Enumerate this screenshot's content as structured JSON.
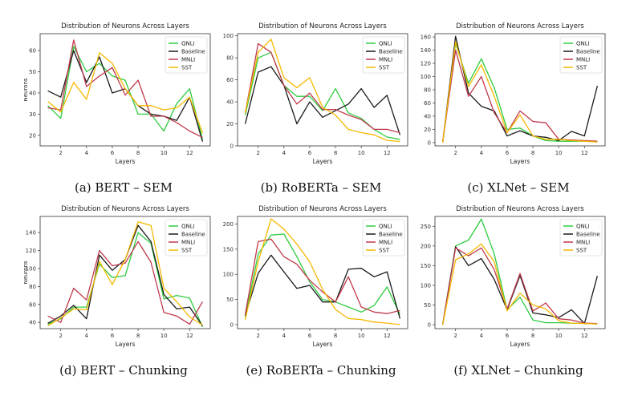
{
  "colors": {
    "QNLI": "#2ecc40",
    "Baseline": "#1a1a1a",
    "MNLI": "#c0394b",
    "SST": "#f5b800"
  },
  "panels": [
    {
      "caption": "(a) BERT – SEM"
    },
    {
      "caption": "(b) RoBERTa – SEM"
    },
    {
      "caption": "(c) XLNet – SEM"
    },
    {
      "caption": "(d) BERT – Chunking"
    },
    {
      "caption": "(e) RoBERTa – Chunking"
    },
    {
      "caption": "(f) XLNet – Chunking"
    }
  ],
  "chart_data": [
    {
      "type": "line",
      "title": "Distribution of Neurons Across Layers",
      "xlabel": "Layers",
      "ylabel": "Neurons",
      "x": [
        1,
        2,
        3,
        4,
        5,
        6,
        7,
        8,
        9,
        10,
        11,
        12,
        13
      ],
      "xticks": [
        2,
        4,
        6,
        8,
        10,
        12
      ],
      "yticks": [
        20,
        30,
        40,
        50,
        60
      ],
      "xlim": [
        0.4,
        13.6
      ],
      "ylim": [
        15,
        68
      ],
      "legend": "top-right",
      "series": [
        {
          "name": "QNLI",
          "values": [
            34,
            28,
            62,
            50,
            54,
            48,
            46,
            30,
            30,
            22,
            35,
            42,
            18
          ]
        },
        {
          "name": "Baseline",
          "values": [
            41,
            38,
            60,
            45,
            57,
            40,
            42,
            34,
            30,
            29,
            27,
            38,
            17
          ]
        },
        {
          "name": "MNLI",
          "values": [
            33,
            32,
            65,
            43,
            48,
            52,
            39,
            46,
            29,
            29,
            26,
            22,
            19
          ]
        },
        {
          "name": "SST",
          "values": [
            36,
            31,
            45,
            37,
            59,
            54,
            42,
            34,
            34,
            32,
            33,
            38,
            21
          ]
        }
      ]
    },
    {
      "type": "line",
      "title": "Distribution of Neurons Across Layers",
      "xlabel": "Layers",
      "ylabel": "",
      "x": [
        1,
        2,
        3,
        4,
        5,
        6,
        7,
        8,
        9,
        10,
        11,
        12,
        13
      ],
      "xticks": [
        2,
        4,
        6,
        8,
        10,
        12
      ],
      "yticks": [
        0,
        20,
        40,
        60,
        80,
        100
      ],
      "xlim": [
        0.4,
        13.6
      ],
      "ylim": [
        0,
        102
      ],
      "legend": "top-right",
      "series": [
        {
          "name": "QNLI",
          "values": [
            28,
            80,
            85,
            55,
            45,
            45,
            32,
            52,
            30,
            25,
            15,
            8,
            6
          ]
        },
        {
          "name": "Baseline",
          "values": [
            20,
            67,
            72,
            55,
            20,
            40,
            26,
            32,
            38,
            52,
            35,
            46,
            10
          ]
        },
        {
          "name": "MNLI",
          "values": [
            30,
            93,
            85,
            55,
            38,
            48,
            33,
            33,
            28,
            24,
            15,
            15,
            12
          ]
        },
        {
          "name": "SST",
          "values": [
            30,
            85,
            97,
            62,
            53,
            62,
            35,
            28,
            15,
            12,
            10,
            5,
            4
          ]
        }
      ]
    },
    {
      "type": "line",
      "title": "Distribution of Neurons Across Layers",
      "xlabel": "Layers",
      "ylabel": "",
      "x": [
        1,
        2,
        3,
        4,
        5,
        6,
        7,
        8,
        9,
        10,
        11,
        12,
        13
      ],
      "xticks": [
        2,
        4,
        6,
        8,
        10,
        12
      ],
      "yticks": [
        0,
        20,
        40,
        60,
        80,
        100,
        120,
        140,
        160
      ],
      "xlim": [
        0.4,
        13.6
      ],
      "ylim": [
        -5,
        165
      ],
      "legend": "top-right",
      "series": [
        {
          "name": "QNLI",
          "values": [
            0,
            150,
            90,
            127,
            83,
            20,
            22,
            10,
            3,
            2,
            2,
            2,
            1
          ]
        },
        {
          "name": "Baseline",
          "values": [
            0,
            161,
            75,
            55,
            48,
            10,
            18,
            10,
            8,
            3,
            17,
            10,
            86
          ]
        },
        {
          "name": "MNLI",
          "values": [
            0,
            140,
            70,
            100,
            45,
            15,
            48,
            32,
            30,
            5,
            4,
            3,
            2
          ]
        },
        {
          "name": "SST",
          "values": [
            0,
            153,
            85,
            118,
            70,
            15,
            42,
            10,
            5,
            5,
            3,
            2,
            1
          ]
        }
      ]
    },
    {
      "type": "line",
      "title": "Distribution of Neurons Across Layers",
      "xlabel": "Layers",
      "ylabel": "Neurons",
      "x": [
        1,
        2,
        3,
        4,
        5,
        6,
        7,
        8,
        9,
        10,
        11,
        12,
        13
      ],
      "xticks": [
        2,
        4,
        6,
        8,
        10,
        12
      ],
      "yticks": [
        40,
        60,
        80,
        100,
        120,
        140
      ],
      "xlim": [
        0.4,
        13.6
      ],
      "ylim": [
        33,
        158
      ],
      "legend": "top-right",
      "series": [
        {
          "name": "QNLI",
          "values": [
            38,
            44,
            57,
            57,
            105,
            90,
            92,
            140,
            128,
            66,
            70,
            67,
            35
          ]
        },
        {
          "name": "Baseline",
          "values": [
            39,
            47,
            59,
            44,
            115,
            98,
            110,
            148,
            130,
            71,
            55,
            57,
            36
          ]
        },
        {
          "name": "MNLI",
          "values": [
            47,
            40,
            78,
            65,
            120,
            103,
            106,
            130,
            107,
            51,
            47,
            38,
            63
          ]
        },
        {
          "name": "SST",
          "values": [
            36,
            45,
            55,
            54,
            108,
            82,
            110,
            152,
            148,
            78,
            63,
            46,
            37
          ]
        }
      ]
    },
    {
      "type": "line",
      "title": "Distribution of Neurons Across Layers",
      "xlabel": "Layers",
      "ylabel": "",
      "x": [
        1,
        2,
        3,
        4,
        5,
        6,
        7,
        8,
        9,
        10,
        11,
        12,
        13
      ],
      "xticks": [
        2,
        4,
        6,
        8,
        10,
        12
      ],
      "yticks": [
        0,
        50,
        100,
        150,
        200
      ],
      "xlim": [
        0.4,
        13.6
      ],
      "ylim": [
        -8,
        215
      ],
      "legend": "top-right",
      "series": [
        {
          "name": "QNLI",
          "values": [
            15,
            140,
            178,
            180,
            135,
            85,
            50,
            45,
            35,
            25,
            38,
            75,
            20
          ]
        },
        {
          "name": "Baseline",
          "values": [
            18,
            102,
            138,
            105,
            72,
            78,
            45,
            45,
            110,
            112,
            95,
            105,
            12
          ]
        },
        {
          "name": "MNLI",
          "values": [
            20,
            165,
            170,
            135,
            120,
            88,
            65,
            45,
            95,
            35,
            25,
            22,
            28
          ]
        },
        {
          "name": "SST",
          "values": [
            10,
            125,
            210,
            190,
            160,
            125,
            70,
            30,
            12,
            10,
            5,
            3,
            0
          ]
        }
      ]
    },
    {
      "type": "line",
      "title": "Distribution of Neurons Across Layers",
      "xlabel": "Layers",
      "ylabel": "",
      "x": [
        1,
        2,
        3,
        4,
        5,
        6,
        7,
        8,
        9,
        10,
        11,
        12,
        13
      ],
      "xticks": [
        2,
        4,
        6,
        8,
        10,
        12
      ],
      "yticks": [
        0,
        50,
        100,
        150,
        200,
        250
      ],
      "xlim": [
        0.4,
        13.6
      ],
      "ylim": [
        -10,
        275
      ],
      "legend": "top-right",
      "series": [
        {
          "name": "QNLI",
          "values": [
            0,
            200,
            215,
            268,
            180,
            38,
            70,
            12,
            5,
            5,
            4,
            3,
            2
          ]
        },
        {
          "name": "Baseline",
          "values": [
            0,
            198,
            150,
            168,
            115,
            38,
            125,
            30,
            25,
            18,
            38,
            3,
            124
          ]
        },
        {
          "name": "MNLI",
          "values": [
            0,
            195,
            175,
            195,
            140,
            40,
            130,
            35,
            55,
            15,
            12,
            4,
            3
          ]
        },
        {
          "name": "SST",
          "values": [
            0,
            165,
            180,
            205,
            160,
            35,
            80,
            50,
            40,
            10,
            4,
            3,
            2
          ]
        }
      ]
    }
  ]
}
